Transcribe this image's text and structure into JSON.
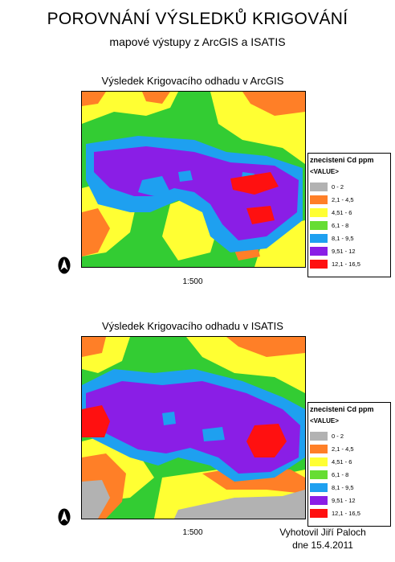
{
  "header": {
    "title": "POROVNÁNÍ VÝSLEDKŮ KRIGOVÁNÍ",
    "subtitle": "mapové výstupy z ArcGIS a ISATIS"
  },
  "maps": [
    {
      "title": "Výsledek Krigovacího odhadu v ArcGIS",
      "scale": "1:500"
    },
    {
      "title": "Výsledek Krigovacího odhadu v ISATIS",
      "scale": "1:500"
    }
  ],
  "legend": {
    "title": "znecisteni Cd ppm",
    "field": "<VALUE>",
    "classes": [
      {
        "label": "0 - 2",
        "color": "#b2b2b2"
      },
      {
        "label": "2,1 - 4,5",
        "color": "#ff7f27"
      },
      {
        "label": "4,51 - 6",
        "color": "#ffff33"
      },
      {
        "label": "6,1 - 8",
        "color": "#66dd33"
      },
      {
        "label": "8,1 - 9,5",
        "color": "#1ea0f0"
      },
      {
        "label": "9,51 - 12",
        "color": "#8a1ee6"
      },
      {
        "label": "12,1 - 16,5",
        "color": "#ff1010"
      }
    ]
  },
  "footer": {
    "author": "Vyhotovil Jiří Paloch",
    "date": "dne 15.4.2011"
  }
}
